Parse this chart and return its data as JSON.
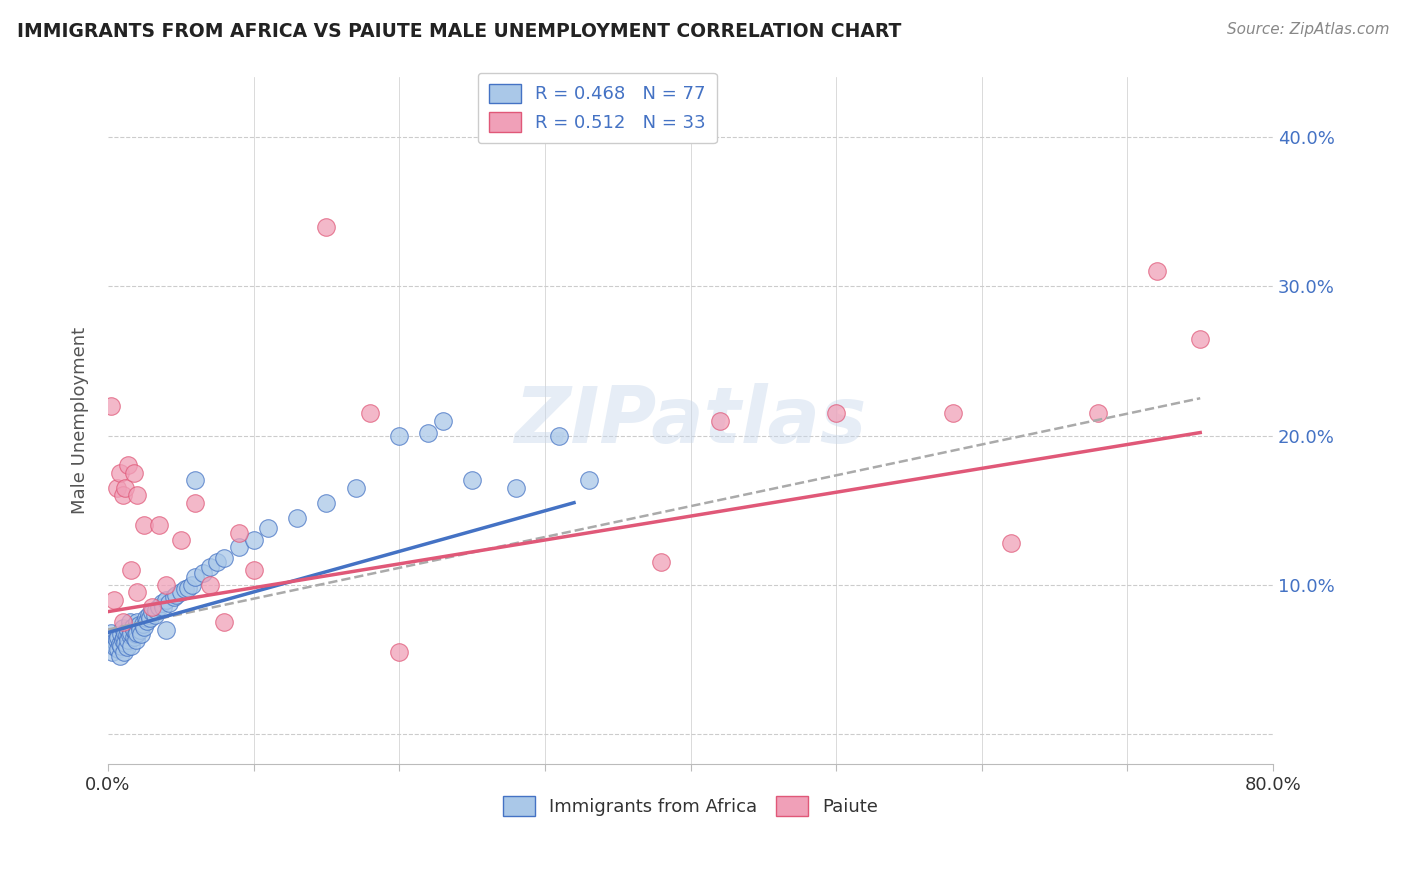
{
  "title": "IMMIGRANTS FROM AFRICA VS PAIUTE MALE UNEMPLOYMENT CORRELATION CHART",
  "source_text": "Source: ZipAtlas.com",
  "ylabel": "Male Unemployment",
  "xlim": [
    0.0,
    0.8
  ],
  "ylim": [
    -0.02,
    0.44
  ],
  "xticks": [
    0.0,
    0.1,
    0.2,
    0.3,
    0.4,
    0.5,
    0.6,
    0.7,
    0.8
  ],
  "xticklabels": [
    "0.0%",
    "",
    "",
    "",
    "",
    "",
    "",
    "",
    "80.0%"
  ],
  "ytick_positions": [
    0.0,
    0.1,
    0.2,
    0.3,
    0.4
  ],
  "yticklabels": [
    "",
    "10.0%",
    "20.0%",
    "30.0%",
    "40.0%"
  ],
  "legend_r1": "R = 0.468",
  "legend_n1": "N = 77",
  "legend_r2": "R = 0.512",
  "legend_n2": "N = 33",
  "color_blue": "#aac8e8",
  "color_blue_line": "#4472c4",
  "color_pink": "#f0a0b8",
  "color_pink_line": "#e05878",
  "color_gray_line": "#aaaaaa",
  "watermark": "ZIPatlas",
  "blue_scatter_x": [
    0.001,
    0.002,
    0.003,
    0.004,
    0.005,
    0.005,
    0.006,
    0.007,
    0.007,
    0.008,
    0.008,
    0.009,
    0.009,
    0.01,
    0.01,
    0.011,
    0.011,
    0.012,
    0.012,
    0.013,
    0.013,
    0.014,
    0.014,
    0.015,
    0.015,
    0.016,
    0.016,
    0.017,
    0.018,
    0.018,
    0.019,
    0.019,
    0.02,
    0.02,
    0.021,
    0.022,
    0.023,
    0.024,
    0.025,
    0.026,
    0.027,
    0.028,
    0.029,
    0.03,
    0.032,
    0.033,
    0.035,
    0.037,
    0.038,
    0.04,
    0.042,
    0.045,
    0.047,
    0.05,
    0.053,
    0.055,
    0.058,
    0.06,
    0.065,
    0.07,
    0.075,
    0.08,
    0.09,
    0.1,
    0.11,
    0.13,
    0.15,
    0.17,
    0.2,
    0.23,
    0.25,
    0.28,
    0.31,
    0.33,
    0.22,
    0.04,
    0.06
  ],
  "blue_scatter_y": [
    0.065,
    0.068,
    0.055,
    0.06,
    0.062,
    0.058,
    0.063,
    0.057,
    0.065,
    0.06,
    0.052,
    0.067,
    0.059,
    0.063,
    0.071,
    0.065,
    0.055,
    0.068,
    0.061,
    0.066,
    0.058,
    0.07,
    0.063,
    0.066,
    0.075,
    0.068,
    0.059,
    0.072,
    0.065,
    0.07,
    0.067,
    0.063,
    0.075,
    0.068,
    0.073,
    0.07,
    0.067,
    0.074,
    0.072,
    0.078,
    0.076,
    0.08,
    0.078,
    0.082,
    0.08,
    0.083,
    0.085,
    0.088,
    0.085,
    0.09,
    0.088,
    0.092,
    0.093,
    0.095,
    0.097,
    0.098,
    0.1,
    0.105,
    0.108,
    0.112,
    0.115,
    0.118,
    0.125,
    0.13,
    0.138,
    0.145,
    0.155,
    0.165,
    0.2,
    0.21,
    0.17,
    0.165,
    0.2,
    0.17,
    0.202,
    0.07,
    0.17
  ],
  "pink_scatter_x": [
    0.002,
    0.004,
    0.006,
    0.008,
    0.01,
    0.012,
    0.014,
    0.016,
    0.018,
    0.02,
    0.025,
    0.03,
    0.035,
    0.04,
    0.05,
    0.06,
    0.07,
    0.08,
    0.09,
    0.1,
    0.15,
    0.18,
    0.38,
    0.42,
    0.5,
    0.58,
    0.62,
    0.68,
    0.72,
    0.75,
    0.01,
    0.02,
    0.2
  ],
  "pink_scatter_y": [
    0.22,
    0.09,
    0.165,
    0.175,
    0.16,
    0.165,
    0.18,
    0.11,
    0.175,
    0.095,
    0.14,
    0.085,
    0.14,
    0.1,
    0.13,
    0.155,
    0.1,
    0.075,
    0.135,
    0.11,
    0.34,
    0.215,
    0.115,
    0.21,
    0.215,
    0.215,
    0.128,
    0.215,
    0.31,
    0.265,
    0.075,
    0.16,
    0.055
  ],
  "blue_trend": [
    0.0,
    0.32
  ],
  "blue_trend_y": [
    0.068,
    0.155
  ],
  "pink_trend": [
    0.0,
    0.75
  ],
  "pink_trend_y": [
    0.082,
    0.202
  ],
  "gray_trend": [
    0.0,
    0.75
  ],
  "gray_trend_y": [
    0.07,
    0.225
  ]
}
